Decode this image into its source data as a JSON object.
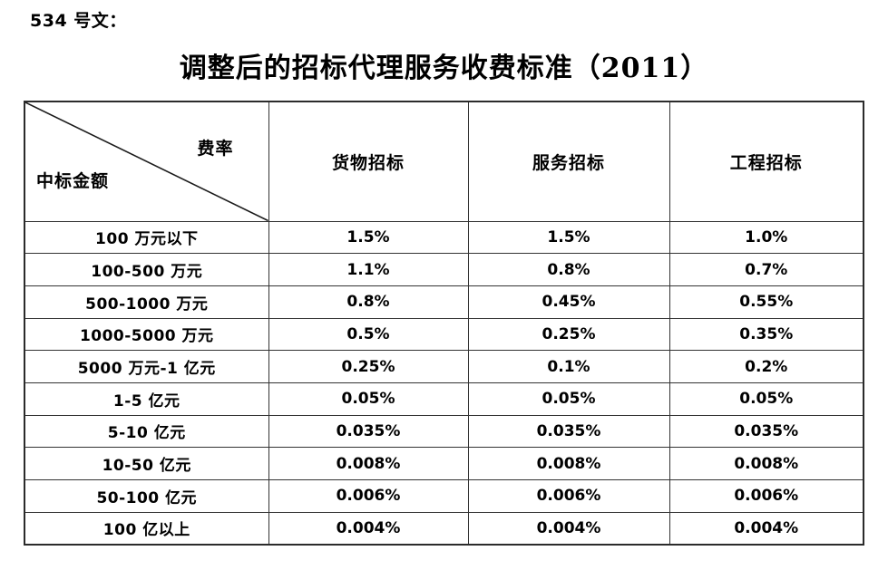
{
  "page": {
    "doc_number": "534 号文：",
    "title": "调整后的招标代理服务收费标准（2011）"
  },
  "table": {
    "corner": {
      "top_right": "费率",
      "bottom_left": "中标金额"
    },
    "columns": [
      "货物招标",
      "服务招标",
      "工程招标"
    ],
    "rows": [
      {
        "label": "100 万元以下",
        "values": [
          "1.5%",
          "1.5%",
          "1.0%"
        ]
      },
      {
        "label": "100-500 万元",
        "values": [
          "1.1%",
          "0.8%",
          "0.7%"
        ]
      },
      {
        "label": "500-1000 万元",
        "values": [
          "0.8%",
          "0.45%",
          "0.55%"
        ]
      },
      {
        "label": "1000-5000 万元",
        "values": [
          "0.5%",
          "0.25%",
          "0.35%"
        ]
      },
      {
        "label": "5000 万元-1 亿元",
        "values": [
          "0.25%",
          "0.1%",
          "0.2%"
        ]
      },
      {
        "label": "1-5 亿元",
        "values": [
          "0.05%",
          "0.05%",
          "0.05%"
        ]
      },
      {
        "label": "5-10 亿元",
        "values": [
          "0.035%",
          "0.035%",
          "0.035%"
        ]
      },
      {
        "label": "10-50 亿元",
        "values": [
          "0.008%",
          "0.008%",
          "0.008%"
        ]
      },
      {
        "label": "50-100 亿元",
        "values": [
          "0.006%",
          "0.006%",
          "0.006%"
        ]
      },
      {
        "label": "100 亿以上",
        "values": [
          "0.004%",
          "0.004%",
          "0.004%"
        ]
      }
    ]
  },
  "colors": {
    "text": "#000000",
    "border": "#333333",
    "background": "#ffffff"
  }
}
